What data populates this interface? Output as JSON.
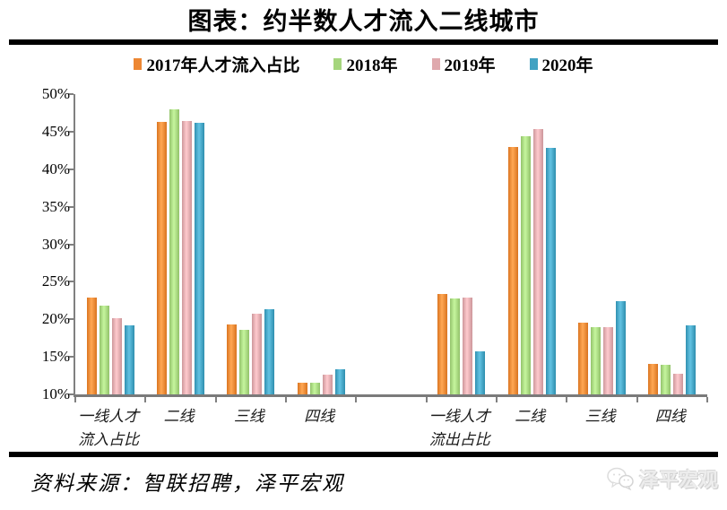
{
  "title": "图表：约半数人才流入二线城市",
  "legend": [
    {
      "label": "2017年人才流入占比",
      "color": "#ED8733"
    },
    {
      "label": "2018年",
      "color": "#A5D57D"
    },
    {
      "label": "2019年",
      "color": "#DFA9AD"
    },
    {
      "label": "2020年",
      "color": "#42A2C2"
    }
  ],
  "chart_data": {
    "type": "bar",
    "title": "图表：约半数人才流入二线城市",
    "categories": [
      "一线人才\n流入占比",
      "二线",
      "三线",
      "四线",
      "",
      "一线人才\n流出占比",
      "二线",
      "三线",
      "四线"
    ],
    "series": [
      {
        "name": "2017年人才流入占比",
        "color": "#ED8733",
        "values": [
          22.9,
          46.3,
          19.3,
          11.6,
          null,
          23.4,
          43.0,
          19.5,
          14.1
        ]
      },
      {
        "name": "2018年",
        "color": "#A5D57D",
        "values": [
          21.8,
          48.0,
          18.6,
          11.6,
          null,
          22.8,
          44.4,
          18.9,
          13.9
        ]
      },
      {
        "name": "2019年",
        "color": "#DFA9AD",
        "values": [
          20.2,
          46.4,
          20.7,
          12.6,
          null,
          22.9,
          45.3,
          18.9,
          12.8
        ]
      },
      {
        "name": "2020年",
        "color": "#42A2C2",
        "values": [
          19.2,
          46.2,
          21.3,
          13.4,
          null,
          15.7,
          42.8,
          22.4,
          19.2
        ]
      }
    ],
    "ylim": [
      10,
      50
    ],
    "ytick_step": 5,
    "ytick_labels": [
      "10%",
      "15%",
      "20%",
      "25%",
      "30%",
      "35%",
      "40%",
      "45%",
      "50%"
    ],
    "grid": false,
    "legend_position": "top",
    "xlabel": "",
    "ylabel": ""
  },
  "footer": {
    "source": "资料来源：智联招聘，泽平宏观",
    "watermark": "泽平宏观"
  },
  "colors": {
    "axis": "#808080",
    "rule": "#000000",
    "watermark_gray": "#ededed"
  }
}
